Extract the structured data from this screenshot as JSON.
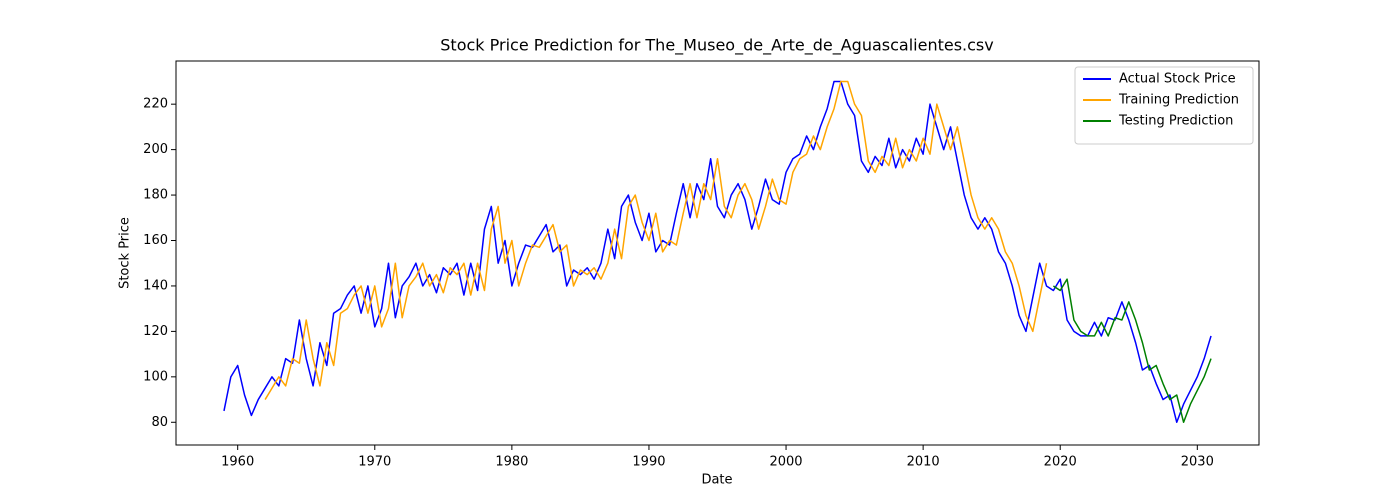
{
  "chart_data": {
    "type": "line",
    "title": "Stock Price Prediction for The_Museo_de_Arte_de_Aguascalientes.csv",
    "x_label": "Date",
    "y_label": "Stock Price",
    "xlim": [
      1955.5,
      2034.5
    ],
    "ylim": [
      70,
      239
    ],
    "xticks": [
      1960,
      1970,
      1980,
      1990,
      2000,
      2010,
      2020,
      2030
    ],
    "yticks": [
      80,
      100,
      120,
      140,
      160,
      180,
      200,
      220
    ],
    "legend": "upper right",
    "series": [
      {
        "name": "Actual Stock Price",
        "color": "#0000ff",
        "x": [
          1959,
          1959.5,
          1960,
          1960.5,
          1961,
          1961.5,
          1962,
          1962.5,
          1963,
          1963.5,
          1964,
          1964.5,
          1965,
          1965.5,
          1966,
          1966.5,
          1967,
          1967.5,
          1968,
          1968.5,
          1969,
          1969.5,
          1970,
          1970.5,
          1971,
          1971.5,
          1972,
          1972.5,
          1973,
          1973.5,
          1974,
          1974.5,
          1975,
          1975.5,
          1976,
          1976.5,
          1977,
          1977.5,
          1978,
          1978.5,
          1979,
          1979.5,
          1980,
          1980.5,
          1981,
          1981.5,
          1982,
          1982.5,
          1983,
          1983.5,
          1984,
          1984.5,
          1985,
          1985.5,
          1986,
          1986.5,
          1987,
          1987.5,
          1988,
          1988.5,
          1989,
          1989.5,
          1990,
          1990.5,
          1991,
          1991.5,
          1992,
          1992.5,
          1993,
          1993.5,
          1994,
          1994.5,
          1995,
          1995.5,
          1996,
          1996.5,
          1997,
          1997.5,
          1998,
          1998.5,
          1999,
          1999.5,
          2000,
          2000.5,
          2001,
          2001.5,
          2002,
          2002.5,
          2003,
          2003.5,
          2004,
          2004.5,
          2005,
          2005.5,
          2006,
          2006.5,
          2007,
          2007.5,
          2008,
          2008.5,
          2009,
          2009.5,
          2010,
          2010.5,
          2011,
          2011.5,
          2012,
          2012.5,
          2013,
          2013.5,
          2014,
          2014.5,
          2015,
          2015.5,
          2016,
          2016.5,
          2017,
          2017.5,
          2018,
          2018.5,
          2019,
          2019.5,
          2020,
          2020.5,
          2021,
          2021.5,
          2022,
          2022.5,
          2023,
          2023.5,
          2024,
          2024.5,
          2025,
          2025.5,
          2026,
          2026.5,
          2027,
          2027.5,
          2028,
          2028.5,
          2029,
          2029.5,
          2030,
          2030.5,
          2031
        ],
        "values": [
          85,
          100,
          105,
          92,
          83,
          90,
          95,
          100,
          96,
          108,
          106,
          125,
          108,
          96,
          115,
          105,
          128,
          130,
          136,
          140,
          128,
          140,
          122,
          130,
          150,
          126,
          140,
          144,
          150,
          140,
          145,
          137,
          148,
          145,
          150,
          136,
          150,
          138,
          165,
          175,
          150,
          160,
          140,
          150,
          158,
          157,
          162,
          167,
          155,
          158,
          140,
          147,
          145,
          148,
          143,
          150,
          165,
          152,
          175,
          180,
          168,
          160,
          172,
          155,
          160,
          158,
          172,
          185,
          170,
          185,
          178,
          196,
          175,
          170,
          180,
          185,
          178,
          165,
          175,
          187,
          178,
          176,
          190,
          196,
          198,
          206,
          200,
          210,
          218,
          230,
          230,
          220,
          215,
          195,
          190,
          197,
          193,
          205,
          192,
          200,
          195,
          205,
          198,
          220,
          210,
          200,
          210,
          195,
          180,
          170,
          165,
          170,
          165,
          155,
          150,
          140,
          127,
          120,
          135,
          150,
          140,
          138,
          143,
          125,
          120,
          118,
          118,
          124,
          118,
          126,
          125,
          133,
          125,
          115,
          103,
          105,
          97,
          90,
          92,
          80,
          88,
          94,
          100,
          108,
          118
        ]
      },
      {
        "name": "Training Prediction",
        "color": "#ffa500",
        "x": [
          1962,
          1962.5,
          1963,
          1963.5,
          1964,
          1964.5,
          1965,
          1965.5,
          1966,
          1966.5,
          1967,
          1967.5,
          1968,
          1968.5,
          1969,
          1969.5,
          1970,
          1970.5,
          1971,
          1971.5,
          1972,
          1972.5,
          1973,
          1973.5,
          1974,
          1974.5,
          1975,
          1975.5,
          1976,
          1976.5,
          1977,
          1977.5,
          1978,
          1978.5,
          1979,
          1979.5,
          1980,
          1980.5,
          1981,
          1981.5,
          1982,
          1982.5,
          1983,
          1983.5,
          1984,
          1984.5,
          1985,
          1985.5,
          1986,
          1986.5,
          1987,
          1987.5,
          1988,
          1988.5,
          1989,
          1989.5,
          1990,
          1990.5,
          1991,
          1991.5,
          1992,
          1992.5,
          1993,
          1993.5,
          1994,
          1994.5,
          1995,
          1995.5,
          1996,
          1996.5,
          1997,
          1997.5,
          1998,
          1998.5,
          1999,
          1999.5,
          2000,
          2000.5,
          2001,
          2001.5,
          2002,
          2002.5,
          2003,
          2003.5,
          2004,
          2004.5,
          2005,
          2005.5,
          2006,
          2006.5,
          2007,
          2007.5,
          2008,
          2008.5,
          2009,
          2009.5,
          2010,
          2010.5,
          2011,
          2011.5,
          2012,
          2012.5,
          2013,
          2013.5,
          2014,
          2014.5,
          2015,
          2015.5,
          2016,
          2016.5,
          2017,
          2017.5,
          2018,
          2018.5,
          2019
        ],
        "values": [
          90,
          95,
          100,
          96,
          108,
          106,
          125,
          108,
          96,
          115,
          105,
          128,
          130,
          136,
          140,
          128,
          140,
          122,
          130,
          150,
          126,
          140,
          144,
          150,
          140,
          145,
          137,
          148,
          145,
          150,
          136,
          150,
          138,
          165,
          175,
          150,
          160,
          140,
          150,
          158,
          157,
          162,
          167,
          155,
          158,
          140,
          147,
          145,
          148,
          143,
          150,
          165,
          152,
          175,
          180,
          168,
          160,
          172,
          155,
          160,
          158,
          172,
          185,
          170,
          185,
          178,
          196,
          175,
          170,
          180,
          185,
          178,
          165,
          175,
          187,
          178,
          176,
          190,
          196,
          198,
          206,
          200,
          210,
          218,
          230,
          230,
          220,
          215,
          195,
          190,
          197,
          193,
          205,
          192,
          200,
          195,
          205,
          198,
          220,
          210,
          200,
          210,
          195,
          180,
          170,
          165,
          170,
          165,
          155,
          150,
          140,
          127,
          120,
          135,
          150
        ]
      },
      {
        "name": "Testing Prediction",
        "color": "#008000",
        "x": [
          2019.5,
          2020,
          2020.5,
          2021,
          2021.5,
          2022,
          2022.5,
          2023,
          2023.5,
          2024,
          2024.5,
          2025,
          2025.5,
          2026,
          2026.5,
          2027,
          2027.5,
          2028,
          2028.5,
          2029,
          2029.5,
          2030,
          2030.5,
          2031
        ],
        "values": [
          140,
          138,
          143,
          125,
          120,
          118,
          118,
          124,
          118,
          126,
          125,
          133,
          125,
          115,
          103,
          105,
          97,
          90,
          92,
          80,
          88,
          94,
          100,
          108
        ]
      }
    ]
  }
}
